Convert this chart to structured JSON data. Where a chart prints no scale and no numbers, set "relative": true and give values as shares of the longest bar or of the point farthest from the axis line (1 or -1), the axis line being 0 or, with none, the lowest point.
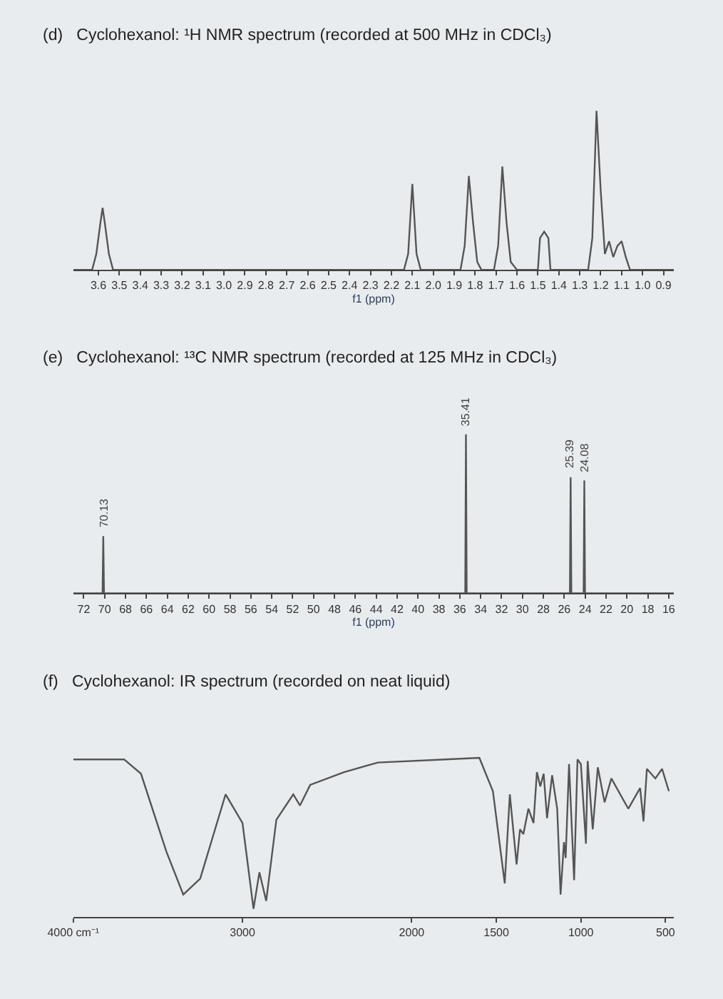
{
  "chart_data": [
    {
      "type": "line",
      "title": "(d)   Cyclohexanol: ¹H NMR spectrum (recorded at 500 MHz in CDCl₃)",
      "xlabel": "f1 (ppm)",
      "relative": true,
      "xlim": [
        3.72,
        0.85
      ],
      "xticks": [
        3.6,
        3.5,
        3.4,
        3.3,
        3.2,
        3.1,
        {
          "value": 3.0,
          "label": "3.0"
        },
        2.9,
        2.8,
        2.7,
        2.6,
        2.5,
        2.4,
        2.3,
        2.2,
        2.1,
        {
          "value": 2.0,
          "label": "2.0"
        },
        1.9,
        1.8,
        1.7,
        1.6,
        1.5,
        1.4,
        1.3,
        1.2,
        1.1,
        {
          "value": 1.0,
          "label": "1.0"
        },
        0.9
      ],
      "series": [
        {
          "color": "#555555",
          "x": [
            3.72,
            3.63,
            3.61,
            3.59,
            3.58,
            3.57,
            3.55,
            3.53,
            2.14,
            2.12,
            2.1,
            2.08,
            2.06,
            1.87,
            1.85,
            1.83,
            1.81,
            1.79,
            1.77,
            1.71,
            1.69,
            1.67,
            1.65,
            1.63,
            1.6,
            1.5,
            1.49,
            1.47,
            1.45,
            1.44,
            1.26,
            1.24,
            1.22,
            1.2,
            1.18,
            1.16,
            1.14,
            1.12,
            1.1,
            1.08,
            1.06,
            0.85
          ],
          "values": [
            0,
            0,
            0.1,
            0.3,
            0.39,
            0.3,
            0.1,
            0,
            0,
            0.1,
            0.54,
            0.1,
            0,
            0,
            0.15,
            0.59,
            0.3,
            0.05,
            0,
            0,
            0.15,
            0.65,
            0.3,
            0.05,
            0,
            0,
            0.2,
            0.24,
            0.2,
            0,
            0,
            0.2,
            1.0,
            0.5,
            0.1,
            0.18,
            0.08,
            0.15,
            0.18,
            0.08,
            0,
            0
          ]
        }
      ]
    },
    {
      "type": "line",
      "title": "(e)   Cyclohexanol: ¹³C NMR spectrum (recorded at 125 MHz in CDCl₃)",
      "xlabel": "f1 (ppm)",
      "relative": true,
      "xlim": [
        73,
        15.5
      ],
      "xticks": [
        72,
        70,
        68,
        66,
        64,
        62,
        60,
        58,
        56,
        54,
        52,
        50,
        48,
        46,
        44,
        42,
        40,
        38,
        36,
        34,
        32,
        30,
        28,
        26,
        24,
        22,
        20,
        18,
        16
      ],
      "series": [
        {
          "color": "#555555",
          "x": [
            73,
            70.2,
            70.13,
            70.06,
            35.48,
            35.41,
            35.34,
            25.46,
            25.39,
            25.32,
            24.15,
            24.08,
            24.01,
            15.5
          ],
          "values": [
            0,
            0,
            0.36,
            0,
            0,
            1.0,
            0,
            0,
            0.73,
            0,
            0,
            0.71,
            0,
            0
          ]
        }
      ],
      "annotations": [
        {
          "text": "70.13",
          "x": 70.13,
          "y": 0.36
        },
        {
          "text": "35.41",
          "x": 35.41,
          "y": 1.0
        },
        {
          "text": "25.39",
          "x": 25.39,
          "y": 0.73
        },
        {
          "text": "24.08",
          "x": 24.08,
          "y": 0.71
        }
      ]
    },
    {
      "type": "line",
      "title": "(f)   Cyclohexanol: IR spectrum (recorded on neat liquid)",
      "relative": true,
      "xlim": [
        4000,
        450
      ],
      "xticks": [
        {
          "value": 4000,
          "label": "4000 cm⁻¹"
        },
        3000,
        2000,
        1500,
        1000,
        500
      ],
      "series": [
        {
          "color": "#555555",
          "x": [
            4000,
            3700,
            3600,
            3450,
            3350,
            3250,
            3100,
            3000,
            2935,
            2900,
            2860,
            2800,
            2700,
            2660,
            2600,
            2400,
            2200,
            1800,
            1600,
            1520,
            1450,
            1420,
            1380,
            1360,
            1340,
            1310,
            1280,
            1260,
            1240,
            1220,
            1200,
            1170,
            1140,
            1120,
            1100,
            1090,
            1070,
            1040,
            1020,
            1000,
            970,
            960,
            930,
            900,
            860,
            820,
            720,
            650,
            630,
            610,
            560,
            520,
            480
          ],
          "values": [
            0.99,
            0.99,
            0.9,
            0.41,
            0.14,
            0.24,
            0.77,
            0.59,
            0.05,
            0.28,
            0.1,
            0.61,
            0.77,
            0.7,
            0.83,
            0.91,
            0.97,
            0.99,
            1.0,
            0.79,
            0.21,
            0.77,
            0.33,
            0.55,
            0.52,
            0.68,
            0.59,
            0.91,
            0.82,
            0.9,
            0.62,
            0.89,
            0.68,
            0.14,
            0.47,
            0.37,
            0.96,
            0.23,
            0.99,
            0.96,
            0.46,
            0.98,
            0.55,
            0.94,
            0.72,
            0.87,
            0.68,
            0.81,
            0.6,
            0.93,
            0.87,
            0.93,
            0.79
          ]
        }
      ]
    }
  ]
}
